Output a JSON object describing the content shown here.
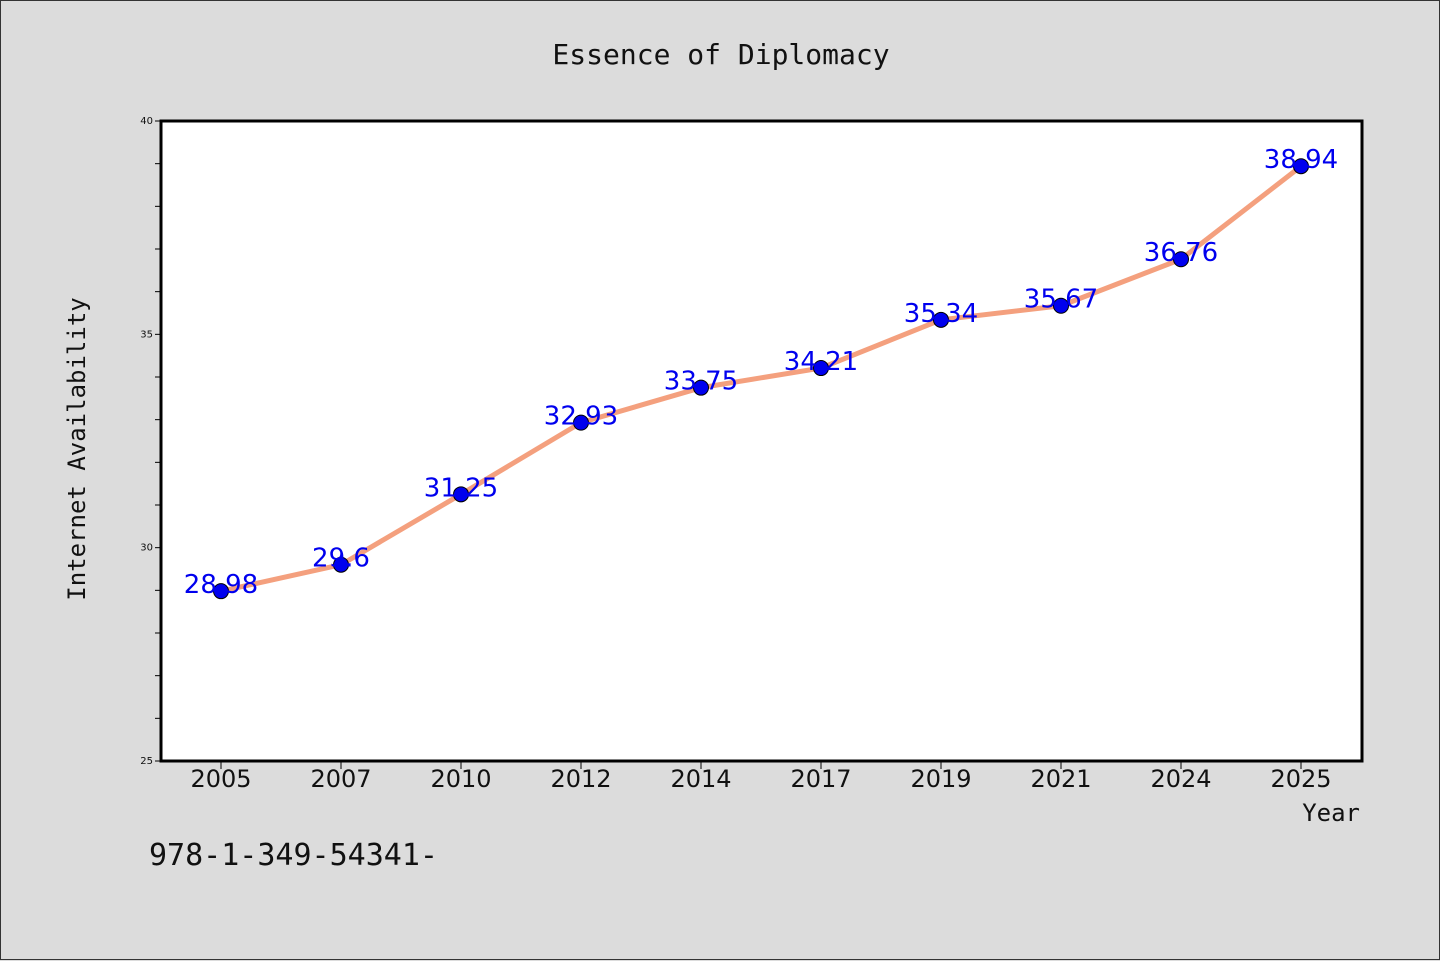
{
  "chart_data": {
    "type": "line",
    "title": "Essence of Diplomacy",
    "xlabel": "Year",
    "ylabel": "Internet Availability",
    "categories": [
      "2005",
      "2007",
      "2010",
      "2012",
      "2014",
      "2017",
      "2019",
      "2021",
      "2024",
      "2025"
    ],
    "series": [
      {
        "values": [
          28.98,
          29.6,
          31.25,
          32.93,
          33.75,
          34.21,
          35.34,
          35.67,
          36.76,
          38.94
        ],
        "data_labels": [
          "28.98",
          "29.6",
          "31.25",
          "32.93",
          "33.75",
          "34.21",
          "35.34",
          "35.67",
          "36.76",
          "38.94"
        ],
        "line_color": "#f4a07e",
        "marker_color": "#0000ee",
        "label_color": "#0000ee"
      }
    ],
    "ylim": [
      25,
      40
    ],
    "yticks": [
      25,
      30,
      35,
      40
    ],
    "ytick_labels": [
      "25",
      "30",
      "35",
      "40"
    ],
    "grid": false,
    "legend": "none"
  },
  "footer": {
    "text": "978-1-349-54341-"
  },
  "colors": {
    "background": "#dcdcdc",
    "plot_background": "#ffffff",
    "axis": "#000000"
  }
}
